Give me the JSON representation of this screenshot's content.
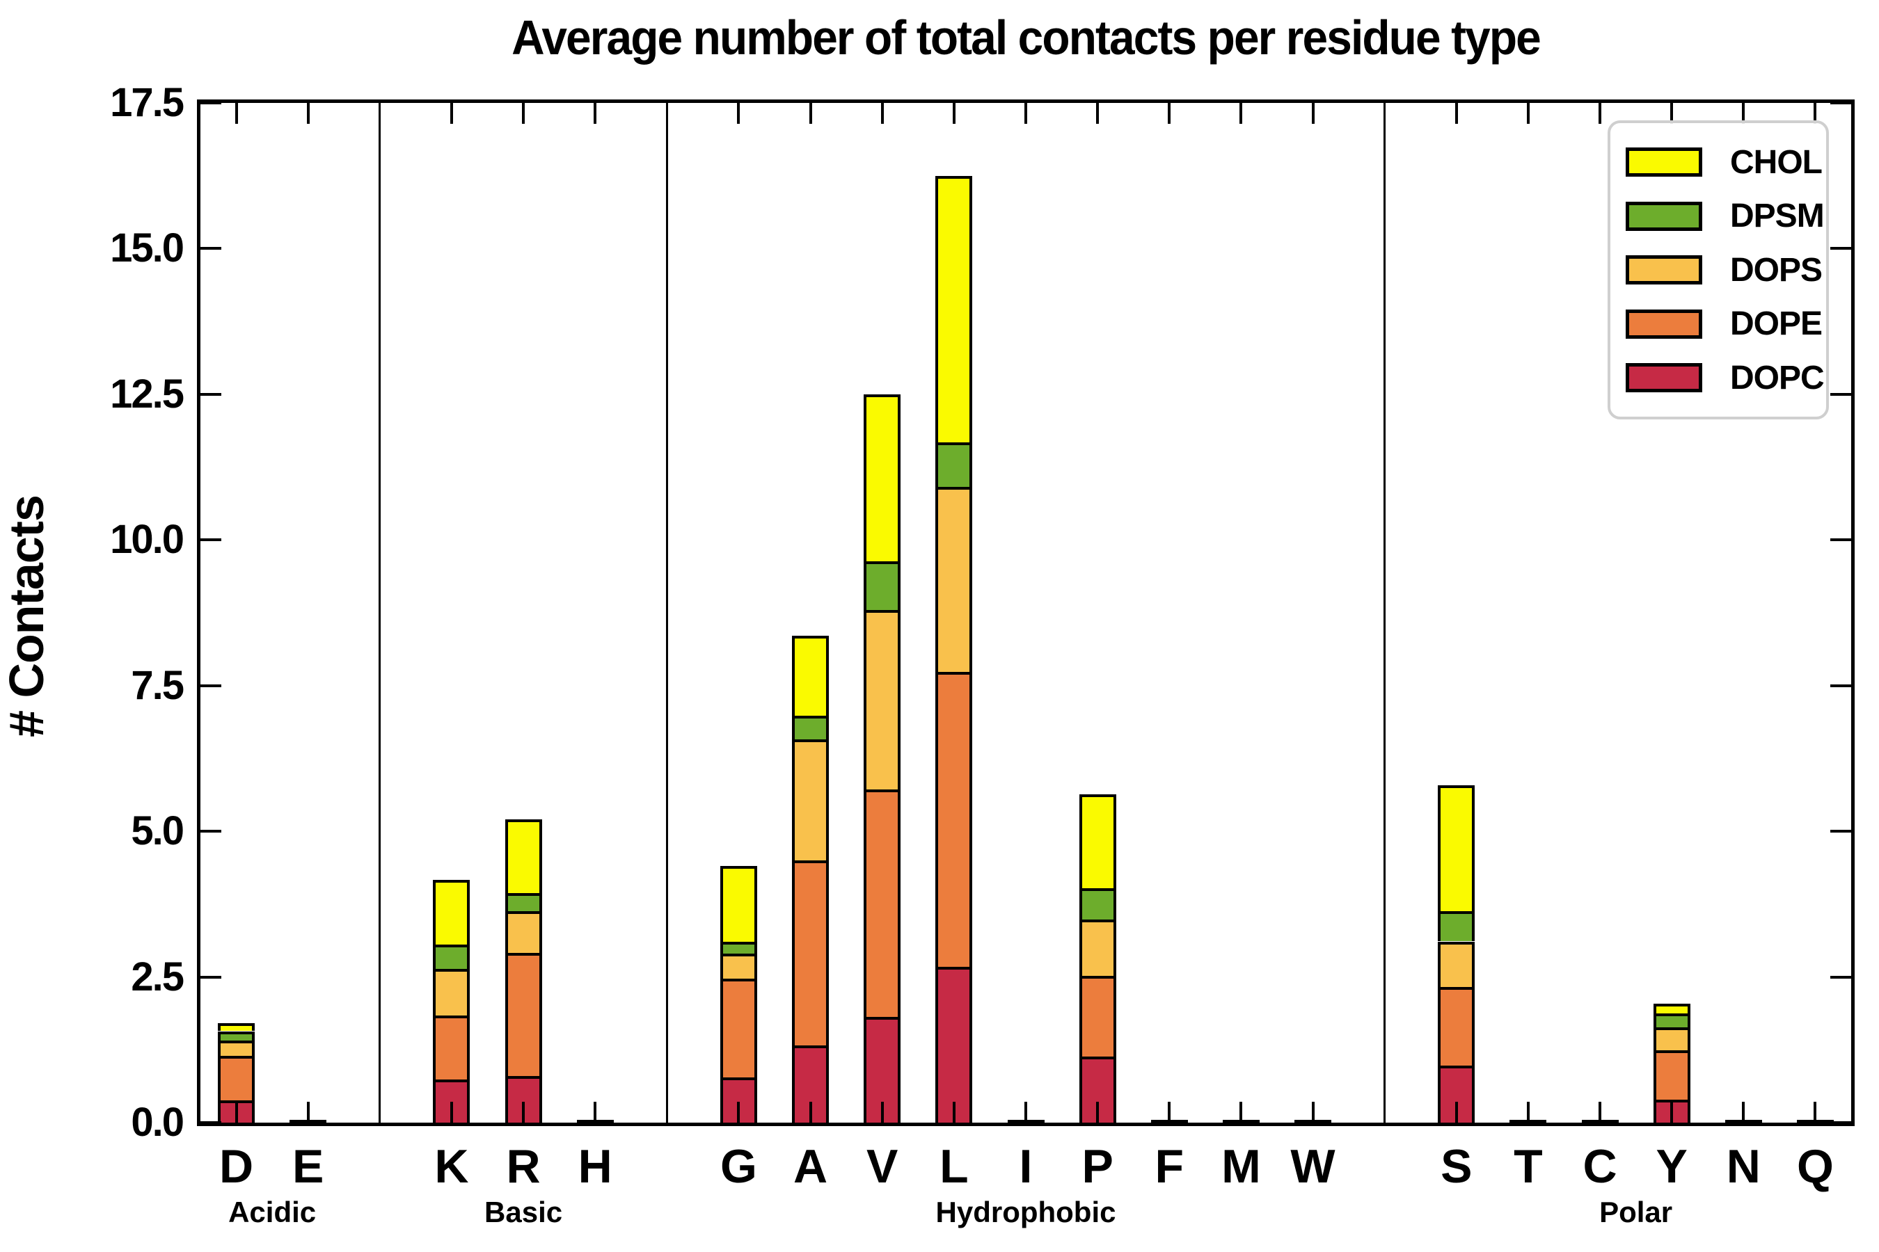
{
  "title": "Average number of total contacts per residue type",
  "y_axis": {
    "label": "# Contacts",
    "tick_labels": [
      "0.0",
      "2.5",
      "5.0",
      "7.5",
      "10.0",
      "12.5",
      "15.0",
      "17.5"
    ]
  },
  "legend": {
    "entries": [
      {
        "label": "CHOL",
        "color": "#fafa00"
      },
      {
        "label": "DPSM",
        "color": "#6dad2c"
      },
      {
        "label": "DOPS",
        "color": "#f9c14c"
      },
      {
        "label": "DOPE",
        "color": "#ec7d3d"
      },
      {
        "label": "DOPC",
        "color": "#c62a45"
      }
    ]
  },
  "chart_data": {
    "type": "bar",
    "stacked": true,
    "title": "Average number of total contacts per residue type",
    "xlabel": "",
    "ylabel": "# Contacts",
    "ylim": [
      0,
      17.5
    ],
    "ytick_step": 2.5,
    "grid": false,
    "legend_position": "upper right",
    "series_order": [
      "DOPC",
      "DOPE",
      "DOPS",
      "DPSM",
      "CHOL"
    ],
    "series_colors": {
      "DOPC": "#c62a45",
      "DOPE": "#ec7d3d",
      "DOPS": "#f9c14c",
      "DPSM": "#6dad2c",
      "CHOL": "#fafa00"
    },
    "total_slots": 23,
    "separator_slots": [
      2,
      6,
      16
    ],
    "groups": [
      {
        "name": "Acidic",
        "residues": [
          {
            "label": "D",
            "slot": 0,
            "values": {
              "DOPC": 0.38,
              "DOPE": 0.77,
              "DOPS": 0.26,
              "DPSM": 0.16,
              "CHOL": 0.14
            }
          },
          {
            "label": "E",
            "slot": 1,
            "values": {
              "DOPC": 0.01,
              "DOPE": 0.01,
              "DOPS": 0.0,
              "DPSM": 0.0,
              "CHOL": 0.0
            }
          }
        ]
      },
      {
        "name": "Basic",
        "residues": [
          {
            "label": "K",
            "slot": 3,
            "values": {
              "DOPC": 0.74,
              "DOPE": 1.1,
              "DOPS": 0.8,
              "DPSM": 0.42,
              "CHOL": 1.11
            }
          },
          {
            "label": "R",
            "slot": 4,
            "values": {
              "DOPC": 0.8,
              "DOPE": 2.11,
              "DOPS": 0.72,
              "DPSM": 0.31,
              "CHOL": 1.27
            }
          },
          {
            "label": "H",
            "slot": 5,
            "values": {
              "DOPC": 0.01,
              "DOPE": 0.01,
              "DOPS": 0.0,
              "DPSM": 0.0,
              "CHOL": 0.0
            }
          }
        ]
      },
      {
        "name": "Hydrophobic",
        "residues": [
          {
            "label": "G",
            "slot": 7,
            "values": {
              "DOPC": 0.78,
              "DOPE": 1.69,
              "DOPS": 0.43,
              "DPSM": 0.2,
              "CHOL": 1.3
            }
          },
          {
            "label": "A",
            "slot": 8,
            "values": {
              "DOPC": 1.33,
              "DOPE": 3.17,
              "DOPS": 2.08,
              "DPSM": 0.4,
              "CHOL": 1.38
            }
          },
          {
            "label": "V",
            "slot": 9,
            "values": {
              "DOPC": 1.81,
              "DOPE": 3.91,
              "DOPS": 3.08,
              "DPSM": 0.83,
              "CHOL": 2.87
            }
          },
          {
            "label": "L",
            "slot": 10,
            "values": {
              "DOPC": 2.67,
              "DOPE": 5.06,
              "DOPS": 3.18,
              "DPSM": 0.76,
              "CHOL": 4.58
            }
          },
          {
            "label": "I",
            "slot": 11,
            "values": {
              "DOPC": 0.01,
              "DOPE": 0.01,
              "DOPS": 0.0,
              "DPSM": 0.0,
              "CHOL": 0.0
            }
          },
          {
            "label": "P",
            "slot": 12,
            "values": {
              "DOPC": 1.14,
              "DOPE": 1.38,
              "DOPS": 0.97,
              "DPSM": 0.53,
              "CHOL": 1.62
            }
          },
          {
            "label": "F",
            "slot": 13,
            "values": {
              "DOPC": 0.01,
              "DOPE": 0.01,
              "DOPS": 0.0,
              "DPSM": 0.0,
              "CHOL": 0.0
            }
          },
          {
            "label": "M",
            "slot": 14,
            "values": {
              "DOPC": 0.01,
              "DOPE": 0.01,
              "DOPS": 0.0,
              "DPSM": 0.0,
              "CHOL": 0.0
            }
          },
          {
            "label": "W",
            "slot": 15,
            "values": {
              "DOPC": 0.01,
              "DOPE": 0.01,
              "DOPS": 0.0,
              "DPSM": 0.0,
              "CHOL": 0.0
            }
          }
        ]
      },
      {
        "name": "Polar",
        "residues": [
          {
            "label": "S",
            "slot": 17,
            "values": {
              "DOPC": 0.98,
              "DOPE": 1.35,
              "DOPS": 0.78,
              "DPSM": 0.52,
              "CHOL": 2.16
            }
          },
          {
            "label": "T",
            "slot": 18,
            "values": {
              "DOPC": 0.01,
              "DOPE": 0.01,
              "DOPS": 0.0,
              "DPSM": 0.0,
              "CHOL": 0.0
            }
          },
          {
            "label": "C",
            "slot": 19,
            "values": {
              "DOPC": 0.01,
              "DOPE": 0.01,
              "DOPS": 0.0,
              "DPSM": 0.0,
              "CHOL": 0.0
            }
          },
          {
            "label": "Y",
            "slot": 20,
            "values": {
              "DOPC": 0.4,
              "DOPE": 0.84,
              "DOPS": 0.39,
              "DPSM": 0.25,
              "CHOL": 0.16
            }
          },
          {
            "label": "N",
            "slot": 21,
            "values": {
              "DOPC": 0.01,
              "DOPE": 0.01,
              "DOPS": 0.0,
              "DPSM": 0.0,
              "CHOL": 0.0
            }
          },
          {
            "label": "Q",
            "slot": 22,
            "values": {
              "DOPC": 0.01,
              "DOPE": 0.01,
              "DOPS": 0.0,
              "DPSM": 0.0,
              "CHOL": 0.0
            }
          }
        ]
      }
    ]
  }
}
